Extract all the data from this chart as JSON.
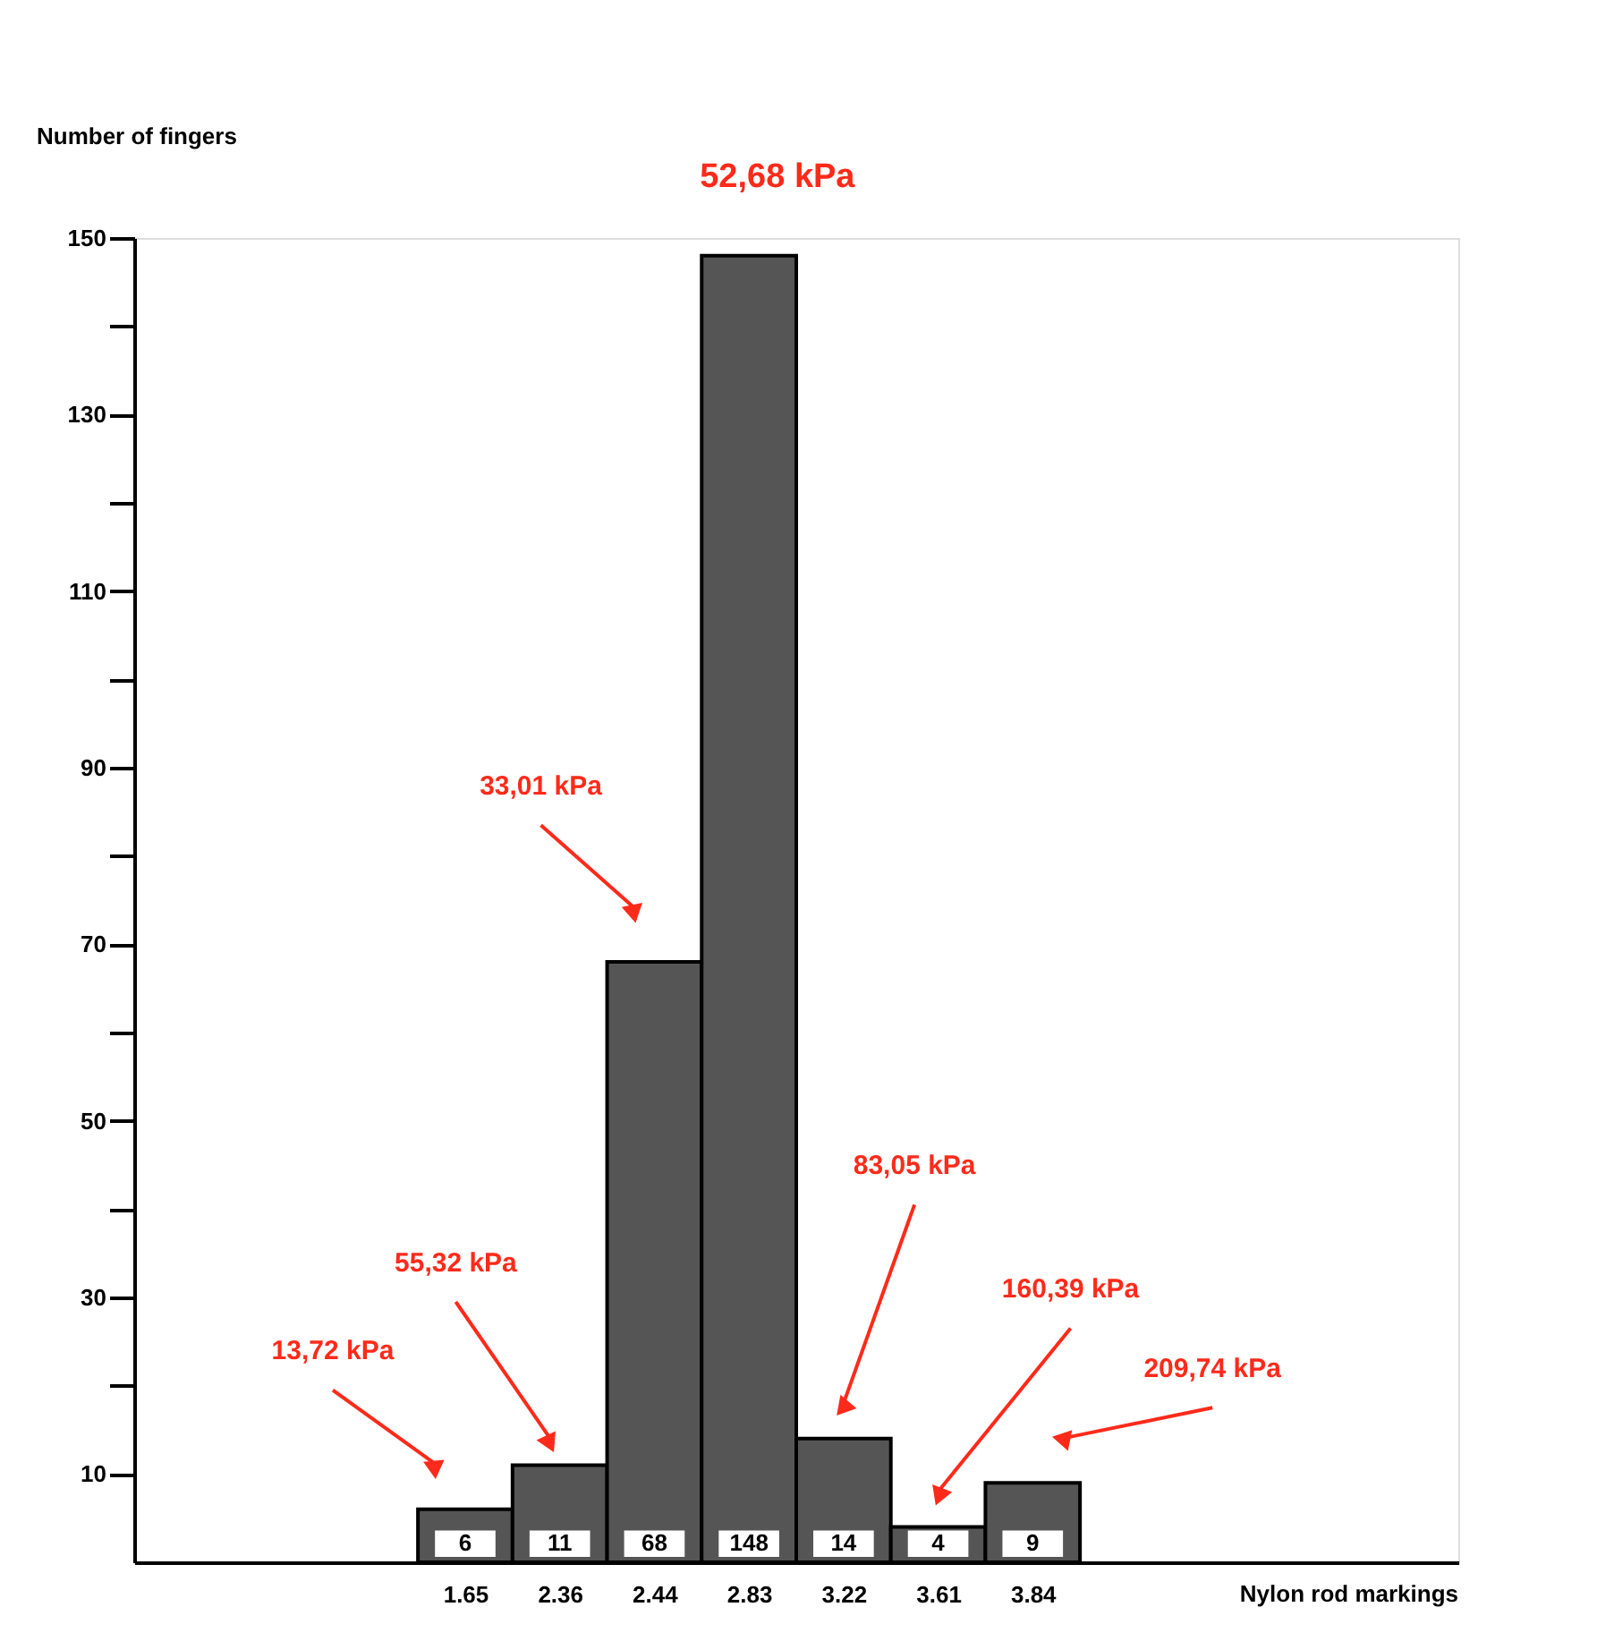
{
  "chart_data": {
    "type": "bar",
    "categories": [
      null,
      null,
      null,
      "1.65",
      "2.36",
      "2.44",
      "2.83",
      "3.22",
      "3.61",
      "3.84",
      null,
      null,
      null,
      null
    ],
    "values": [
      null,
      null,
      null,
      6,
      11,
      68,
      148,
      14,
      4,
      9,
      null,
      null,
      null,
      null
    ],
    "color": "#555555",
    "xlabel": "Nylon rod markings",
    "ylabel": "Number of fingers",
    "ylim": [
      0,
      150
    ],
    "yticks": [
      10,
      {
        "value": 20,
        "label": null
      },
      30,
      {
        "value": 40,
        "label": null
      },
      50,
      {
        "value": 60,
        "label": null
      },
      70,
      {
        "value": 80,
        "label": null
      },
      90,
      {
        "value": 100,
        "label": null
      },
      110,
      {
        "value": 120,
        "label": null
      },
      130,
      {
        "value": 140,
        "label": null
      },
      150
    ],
    "data_labels": true,
    "grid": false,
    "annotations": [
      "13,72 kPa",
      "55,32 kPa",
      "33,01 kPa",
      "52,68 kPa",
      "83,05 kPa",
      "160,39 kPa",
      "209,74 kPa"
    ]
  }
}
